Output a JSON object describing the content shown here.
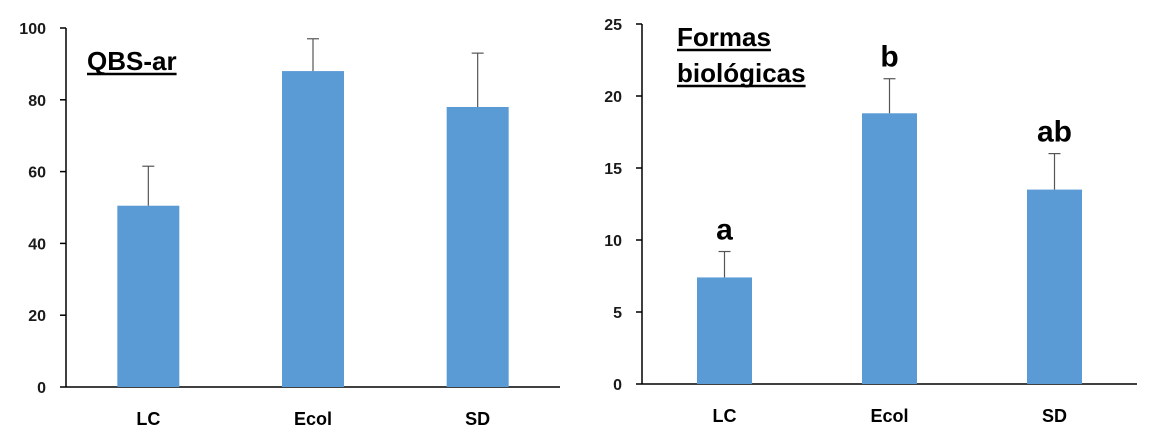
{
  "chart_data": [
    {
      "type": "bar",
      "title": "QBS-ar",
      "categories": [
        "LC",
        "Ecol",
        "SD"
      ],
      "values": [
        50.5,
        88,
        78
      ],
      "errors": [
        11,
        9,
        15
      ],
      "ylim": [
        0,
        100
      ],
      "yticks": [
        0,
        20,
        40,
        60,
        80,
        100
      ],
      "xlabel": "",
      "ylabel": "",
      "grid": false,
      "bar_color": "#5b9bd5",
      "significance_labels": []
    },
    {
      "type": "bar",
      "title_lines": [
        "Formas",
        "biológicas"
      ],
      "categories": [
        "LC",
        "Ecol",
        "SD"
      ],
      "values": [
        7.4,
        18.8,
        13.5
      ],
      "errors": [
        1.8,
        2.4,
        2.5
      ],
      "ylim": [
        0,
        25
      ],
      "yticks": [
        0,
        5,
        10,
        15,
        20,
        25
      ],
      "xlabel": "",
      "ylabel": "",
      "grid": false,
      "bar_color": "#5b9bd5",
      "significance_labels": [
        "a",
        "b",
        "ab"
      ]
    }
  ]
}
